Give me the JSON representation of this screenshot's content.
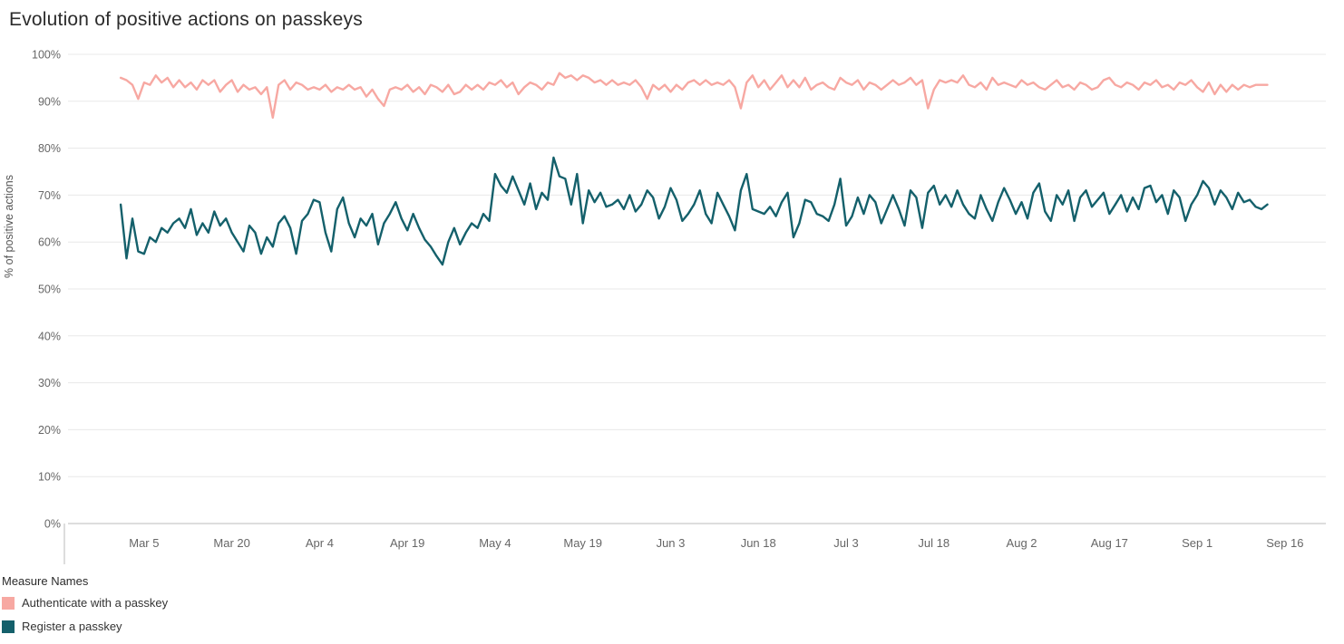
{
  "title": "Evolution of positive actions on passkeys",
  "legend": {
    "title": "Measure Names",
    "items": [
      {
        "label": "Authenticate with a passkey",
        "color": "#F7A8A2"
      },
      {
        "label": "Register a passkey",
        "color": "#14606B"
      }
    ]
  },
  "chart_data": {
    "type": "line",
    "title": "Evolution of positive actions on passkeys",
    "xlabel": "",
    "ylabel": "% of positive actions",
    "ylim": [
      0,
      100
    ],
    "grid": true,
    "legend_position": "bottom-left",
    "y_ticks": [
      0,
      10,
      20,
      30,
      40,
      50,
      60,
      70,
      80,
      90,
      100
    ],
    "y_tick_labels": [
      "0%",
      "10%",
      "20%",
      "30%",
      "40%",
      "50%",
      "60%",
      "70%",
      "80%",
      "90%",
      "100%"
    ],
    "x_axis": {
      "unit": "day",
      "series_start_label": "Mar 1",
      "domain_days": [
        -9,
        206
      ],
      "tick_days": [
        4,
        19,
        34,
        49,
        64,
        79,
        94,
        109,
        124,
        139,
        154,
        169,
        184,
        199
      ],
      "tick_labels": [
        "Mar 5",
        "Mar 20",
        "Apr 4",
        "Apr 19",
        "May 4",
        "May 19",
        "Jun 3",
        "Jun 18",
        "Jul 3",
        "Jul 18",
        "Aug 2",
        "Aug 17",
        "Sep 1",
        "Sep 16"
      ]
    },
    "style": {
      "grid_color": "#E8E8E8",
      "axis_color": "#BBBBBB",
      "tick_text_color": "#666666",
      "axis_title_color": "#555555",
      "line_width": 2.4
    },
    "series": [
      {
        "name": "Authenticate with a passkey",
        "color": "#F7A8A2",
        "values": [
          95,
          94.5,
          93.5,
          90.5,
          94,
          93.5,
          95.5,
          94,
          95,
          93,
          94.5,
          93,
          94,
          92.5,
          94.5,
          93.5,
          94.5,
          92,
          93.5,
          94.5,
          92,
          93.5,
          92.5,
          93,
          91.5,
          93,
          86.5,
          93.5,
          94.5,
          92.5,
          94,
          93.5,
          92.5,
          93,
          92.5,
          93.5,
          92,
          93,
          92.5,
          93.5,
          92.5,
          93,
          91,
          92.5,
          90.5,
          89,
          92.5,
          93,
          92.5,
          93.5,
          92,
          93,
          91.5,
          93.5,
          93,
          92,
          93.5,
          91.5,
          92,
          93.5,
          92.5,
          93.5,
          92.5,
          94,
          93.5,
          94.5,
          93,
          94,
          91.5,
          93,
          94,
          93.5,
          92.5,
          94,
          93.5,
          96,
          95,
          95.5,
          94.5,
          95.5,
          95,
          94,
          94.5,
          93.5,
          94.5,
          93.5,
          94,
          93.5,
          94.5,
          93,
          90.5,
          93.5,
          92.5,
          93.5,
          92,
          93.5,
          92.5,
          94,
          94.5,
          93.5,
          94.5,
          93.5,
          94,
          93.5,
          94.5,
          93,
          88.5,
          94,
          95.5,
          93,
          94.5,
          92.5,
          94,
          95.5,
          93,
          94.5,
          93,
          95,
          92.5,
          93.5,
          94,
          93,
          92.5,
          95,
          94,
          93.5,
          94.5,
          92.5,
          94,
          93.5,
          92.5,
          93.5,
          94.5,
          93.5,
          94,
          95,
          93.5,
          94.5,
          88.5,
          92.5,
          94.5,
          94,
          94.5,
          94,
          95.5,
          93.5,
          93,
          94,
          92.5,
          95,
          93.5,
          94,
          93.5,
          93,
          94.5,
          93.5,
          94,
          93,
          92.5,
          93.5,
          94.5,
          93,
          93.5,
          92.5,
          94,
          93.5,
          92.5,
          93,
          94.5,
          95,
          93.5,
          93,
          94,
          93.5,
          92.5,
          94,
          93.5,
          94.5,
          93,
          93.5,
          92.5,
          94,
          93.5,
          94.5,
          93,
          92,
          94,
          91.5,
          93.5,
          92,
          93.5,
          92.5,
          93.5,
          93,
          93.5,
          93.5,
          93.5
        ]
      },
      {
        "name": "Register a passkey",
        "color": "#14606B",
        "values": [
          68,
          56.5,
          65,
          58,
          57.5,
          61,
          60,
          63,
          62,
          64,
          65,
          63,
          67,
          61.5,
          64,
          62,
          66.5,
          63.5,
          65,
          62,
          60,
          58,
          63.5,
          62,
          57.5,
          61,
          59,
          64,
          65.5,
          63,
          57.5,
          64.5,
          66,
          69,
          68.5,
          62,
          58,
          67,
          69.5,
          64,
          61,
          65,
          63.5,
          66,
          59.5,
          64,
          66,
          68.5,
          65,
          62.5,
          66,
          63,
          60.5,
          59,
          57,
          55.2,
          60,
          63,
          59.5,
          62,
          64,
          63,
          66,
          64.5,
          74.5,
          72,
          70.5,
          74,
          71,
          68,
          72.5,
          67,
          70.5,
          69,
          78,
          74,
          73.5,
          68,
          74.5,
          64,
          71,
          68.5,
          70.5,
          67.5,
          68,
          69,
          67,
          70,
          66.5,
          68,
          71,
          69.5,
          65,
          67.5,
          71.5,
          69,
          64.5,
          66,
          68,
          71,
          66,
          64,
          70.5,
          68,
          65.5,
          62.5,
          71,
          74.5,
          67,
          66.5,
          66,
          67.5,
          65.5,
          68.5,
          70.5,
          61,
          64,
          69,
          68.5,
          66,
          65.5,
          64.5,
          68,
          73.5,
          63.5,
          65.5,
          69.5,
          66,
          70,
          68.5,
          64,
          67,
          70,
          67,
          63.5,
          71,
          69.5,
          63,
          70.5,
          72,
          68,
          70,
          67.5,
          71,
          68,
          66,
          65,
          70,
          67,
          64.5,
          68.5,
          71.5,
          69,
          66,
          68.5,
          65,
          70.5,
          72.5,
          66.5,
          64.5,
          70,
          68,
          71,
          64.5,
          69.5,
          71,
          67.5,
          69,
          70.5,
          66,
          68,
          70,
          66.5,
          69.5,
          67,
          71.5,
          72,
          68.5,
          70,
          66,
          71,
          69.5,
          64.5,
          68,
          70,
          73,
          71.5,
          68,
          71,
          69.5,
          67,
          70.5,
          68.5,
          69,
          67.5,
          67,
          68
        ]
      }
    ]
  }
}
